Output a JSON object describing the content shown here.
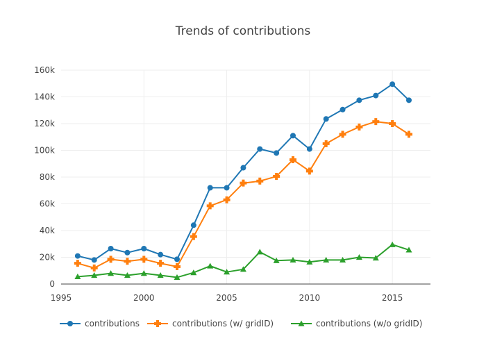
{
  "chart_data": {
    "type": "line",
    "title": "Trends of contributions",
    "xlabel": "",
    "ylabel": "",
    "xlim": [
      1995,
      2017.3
    ],
    "ylim": [
      0,
      160000
    ],
    "x_ticks": [
      1995,
      2000,
      2005,
      2010,
      2015
    ],
    "x_tick_labels": [
      "1995",
      "2000",
      "2005",
      "2010",
      "2015"
    ],
    "y_ticks": [
      0,
      20000,
      40000,
      60000,
      80000,
      100000,
      120000,
      140000,
      160000
    ],
    "y_tick_labels": [
      "0",
      "20k",
      "40k",
      "60k",
      "80k",
      "100k",
      "120k",
      "140k",
      "160k"
    ],
    "grid": true,
    "legend_position": "bottom",
    "x": [
      1996,
      1997,
      1998,
      1999,
      2000,
      2001,
      2002,
      2003,
      2004,
      2005,
      2006,
      2007,
      2008,
      2009,
      2010,
      2011,
      2012,
      2013,
      2014,
      2015,
      2016
    ],
    "series": [
      {
        "name": "contributions",
        "color": "#1f77b4",
        "marker": "circle",
        "values": [
          21000,
          18000,
          26500,
          23500,
          26500,
          22000,
          18500,
          44000,
          72000,
          72000,
          87000,
          101000,
          98000,
          111000,
          101000,
          123500,
          130500,
          137500,
          141000,
          149500,
          137500
        ]
      },
      {
        "name": "contributions (w/ gridID)",
        "color": "#ff7f0e",
        "marker": "cross",
        "values": [
          15500,
          12000,
          18500,
          17000,
          18500,
          15500,
          13000,
          35500,
          58500,
          63000,
          75500,
          77000,
          80500,
          93000,
          84500,
          105000,
          112000,
          117500,
          121500,
          120000,
          112000
        ]
      },
      {
        "name": "contributions (w/o gridID)",
        "color": "#2ca02c",
        "marker": "triangle",
        "values": [
          5500,
          6500,
          8000,
          6500,
          8000,
          6500,
          5000,
          8500,
          13500,
          9000,
          11000,
          24000,
          17500,
          18000,
          16500,
          18000,
          18000,
          20000,
          19500,
          29500,
          25500
        ]
      }
    ]
  }
}
